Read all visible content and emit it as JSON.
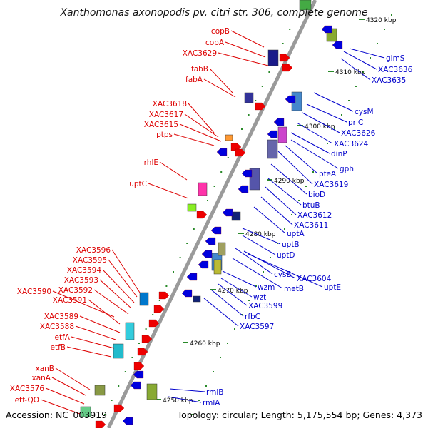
{
  "title": "Xanthomonas axonopodis pv. citri str. 306, complete genome",
  "footer": {
    "accession": "Accession: NC_003919",
    "summary": "Topology: circular; Length: 5,175,554 bp; Genes: 4,373"
  },
  "colors": {
    "left_label": "#dd0000",
    "right_label": "#0000cc",
    "backbone": "#9a9a9a",
    "tick": "#2a8a2a",
    "forward_gene": "#ee0000",
    "reverse_gene": "#0000dd"
  },
  "ticks": [
    {
      "label": "4320 kbp"
    },
    {
      "label": "4310 kbp"
    },
    {
      "label": "4300 kbp"
    },
    {
      "label": "4290 kbp"
    },
    {
      "label": "4280 kbp"
    },
    {
      "label": "4270 kbp"
    },
    {
      "label": "4260 kbp"
    },
    {
      "label": "4250 kbp"
    }
  ],
  "left_labels": [
    "copB",
    "copA",
    "XAC3629",
    "fabB",
    "fabA",
    "XAC3618",
    "XAC3617",
    "XAC3615",
    "ptps",
    "rhlE",
    "uptC",
    "XAC3596",
    "XAC3595",
    "XAC3594",
    "XAC3593",
    "XAC3592",
    "XAC3590",
    "XAC3591",
    "XAC3589",
    "XAC3588",
    "etfA",
    "etfB",
    "xanB",
    "xanA",
    "XAC3576",
    "etf-QO"
  ],
  "right_labels": [
    "glmS",
    "XAC3636",
    "XAC3635",
    "cysM",
    "prlC",
    "XAC3626",
    "XAC3624",
    "dinP",
    "gph",
    "pfeA",
    "XAC3619",
    "bioD",
    "btuB",
    "XAC3612",
    "XAC3611",
    "uptA",
    "uptB",
    "uptD",
    "cysB",
    "XAC3604",
    "metB",
    "uptE",
    "wzm",
    "wzt",
    "XAC3599",
    "rfbC",
    "XAC3597",
    "rmlB",
    "rmlA"
  ]
}
